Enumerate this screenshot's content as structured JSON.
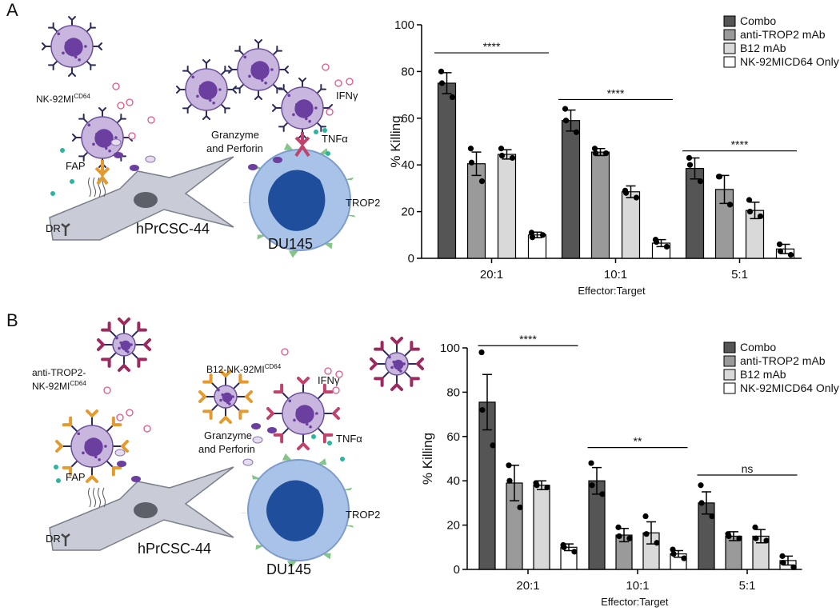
{
  "chart_data": [
    {
      "type": "bar",
      "categories": [
        "20:1",
        "10:1",
        "5:1"
      ],
      "xlabel": "Effector:Target",
      "ylabel": "% Killing",
      "ylim": [
        0,
        100
      ],
      "yticks": [
        0,
        20,
        40,
        60,
        80,
        100
      ],
      "series": [
        {
          "name": "Combo",
          "color": "#555555",
          "values": [
            75,
            59,
            38.5
          ],
          "errors": [
            4.5,
            4.5,
            4.5
          ],
          "points": [
            [
              80,
              75,
              69
            ],
            [
              64,
              59,
              54
            ],
            [
              43,
              40,
              33
            ]
          ]
        },
        {
          "name": "anti-TROP2 mAb",
          "color": "#9a9a9a",
          "values": [
            40.5,
            45.5,
            29.5
          ],
          "errors": [
            5,
            1.5,
            6
          ],
          "points": [
            [
              47,
              41,
              33
            ],
            [
              47,
              45,
              45
            ],
            [
              35,
              35,
              23
            ]
          ]
        },
        {
          "name": "B12 mAb",
          "color": "#d9d9d9",
          "values": [
            44.5,
            28.5,
            20.5
          ],
          "errors": [
            2,
            2.5,
            3.5
          ],
          "points": [
            [
              47,
              44,
              43
            ],
            [
              29,
              28,
              26
            ],
            [
              25,
              20,
              18
            ]
          ]
        },
        {
          "name": "NK-92MICD64 Only",
          "color": "#ffffff",
          "values": [
            10,
            6.5,
            4
          ],
          "errors": [
            1.2,
            1.5,
            2
          ],
          "points": [
            [
              11,
              9,
              10
            ],
            [
              8,
              7,
              5
            ],
            [
              6,
              3,
              1.5
            ]
          ]
        }
      ],
      "annotations": [
        {
          "text": "****",
          "category": 0,
          "y": 88
        },
        {
          "text": "****",
          "category": 1,
          "y": 68
        },
        {
          "text": "****",
          "category": 2,
          "y": 46
        }
      ]
    },
    {
      "type": "bar",
      "categories": [
        "20:1",
        "10:1",
        "5:1"
      ],
      "xlabel": "Effector:Target",
      "ylabel": "% Killing",
      "ylim": [
        0,
        100
      ],
      "yticks": [
        0,
        20,
        40,
        60,
        80,
        100
      ],
      "series": [
        {
          "name": "Combo",
          "color": "#555555",
          "values": [
            75.5,
            40,
            30
          ],
          "errors": [
            12.5,
            6,
            5
          ],
          "points": [
            [
              98,
              72,
              56
            ],
            [
              48,
              38,
              34
            ],
            [
              38,
              30,
              24
            ]
          ]
        },
        {
          "name": "anti-TROP2 mAb",
          "color": "#9a9a9a",
          "values": [
            39,
            15.5,
            15
          ],
          "errors": [
            8,
            3,
            2
          ],
          "points": [
            [
              47,
              40,
              28
            ],
            [
              19,
              15,
              14
            ],
            [
              16,
              15,
              14
            ]
          ]
        },
        {
          "name": "B12 mAb",
          "color": "#d9d9d9",
          "values": [
            38,
            16.5,
            15
          ],
          "errors": [
            2,
            5,
            3
          ],
          "points": [
            [
              39,
              38,
              37
            ],
            [
              24,
              16,
              12
            ],
            [
              19,
              14,
              13
            ]
          ]
        },
        {
          "name": "NK-92MICD64 Only",
          "color": "#ffffff",
          "values": [
            10,
            7,
            4
          ],
          "errors": [
            1.5,
            1.5,
            2
          ],
          "points": [
            [
              11,
              10,
              8
            ],
            [
              9,
              7,
              5
            ],
            [
              6,
              3,
              1
            ]
          ]
        }
      ],
      "annotations": [
        {
          "text": "****",
          "category": 0,
          "y": 101
        },
        {
          "text": "**",
          "category": 1,
          "y": 55
        },
        {
          "text": "ns",
          "category": 2,
          "y": 42.6
        }
      ]
    }
  ],
  "diagrams": [
    {
      "panel": "A",
      "labels": [
        {
          "text": "NK-92MI",
          "sup": "CD64"
        },
        {
          "text": "IFNγ"
        },
        {
          "text": "TNFα"
        },
        {
          "text": "Granzyme"
        },
        {
          "text": "and Perforin"
        },
        {
          "text": "FAP"
        },
        {
          "text": "DR"
        },
        {
          "text": "hPrCSC-44"
        },
        {
          "text": "DU145"
        },
        {
          "text": "TROP2"
        }
      ]
    },
    {
      "panel": "B",
      "labels": [
        {
          "text": "anti-TROP2-"
        },
        {
          "text": "NK-92MI",
          "sup": "CD64"
        },
        {
          "text": "B12-NK-92MI",
          "sup": "CD64"
        },
        {
          "text": "IFNγ"
        },
        {
          "text": "Granzyme"
        },
        {
          "text": "and Perforin"
        },
        {
          "text": "TNFα"
        },
        {
          "text": "FAP"
        },
        {
          "text": "DR"
        },
        {
          "text": "hPrCSC-44"
        },
        {
          "text": "DU145"
        },
        {
          "text": "TROP2"
        }
      ]
    }
  ]
}
